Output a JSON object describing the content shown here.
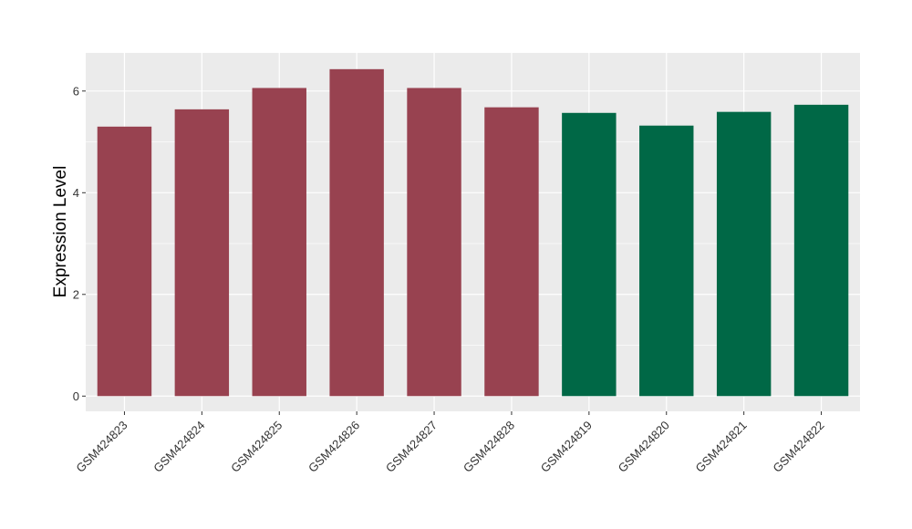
{
  "chart_data": {
    "type": "bar",
    "title": "",
    "xlabel": "",
    "ylabel": "Expression Level",
    "ylim": [
      -0.3,
      6.75
    ],
    "yticks": [
      0,
      2,
      4,
      6
    ],
    "grid": true,
    "legend": "none",
    "background": "#EBEBEB",
    "categories": [
      "GSM424823",
      "GSM424824",
      "GSM424825",
      "GSM424826",
      "GSM424827",
      "GSM424828",
      "GSM424819",
      "GSM424820",
      "GSM424821",
      "GSM424822"
    ],
    "values": [
      5.3,
      5.64,
      6.06,
      6.43,
      6.06,
      5.68,
      5.57,
      5.32,
      5.59,
      5.73
    ],
    "bar_colors": [
      "#984250",
      "#984250",
      "#984250",
      "#984250",
      "#984250",
      "#984250",
      "#006846",
      "#006846",
      "#006846",
      "#006846"
    ]
  }
}
